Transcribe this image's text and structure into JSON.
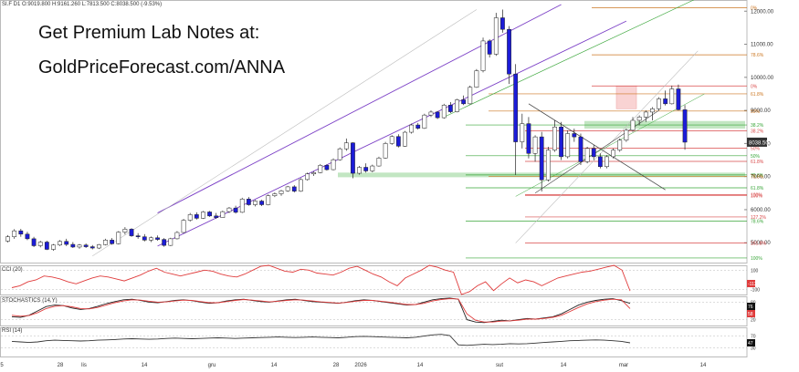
{
  "header": {
    "symbol_line": "SI.F  D1  O:9019.800  H:9161.260  L:7813.500  C:8038.500  (-9.53%)",
    "promo_line1": "Get Premium Lab Notes at:",
    "promo_line2": "GoldPriceForecast.com/ANNA"
  },
  "colors": {
    "bull": "#ffffff",
    "bear": "#1c1cd8",
    "channel": "#7b3fc6",
    "fib_red": "#d94a4a",
    "fib_green": "#39a639",
    "fib_orange": "#cc7722",
    "support_zone": "#8fd18f",
    "resist_zone": "#f2a0a0",
    "cci_line": "#e03c3c",
    "stoch_k": "#222222",
    "stoch_d": "#e03c3c",
    "rsi_line": "#333333"
  },
  "chart_data": [
    {
      "type": "candlestick",
      "panel": "price",
      "title": "",
      "ylim": [
        4400,
        12200
      ],
      "y_ticks": [
        5000,
        6000,
        7000,
        8000,
        9000,
        10000,
        11000,
        12000
      ],
      "y_tick_labels": [
        "5000.00",
        "6000.00",
        "7000.00",
        "8000.00",
        "9000.00",
        "10000.00",
        "11000.00",
        "12000.00"
      ],
      "x_tick_labels": [
        "5",
        "28",
        "lis",
        "14",
        "gru",
        "14",
        "28",
        "2026",
        "14",
        "sut",
        "14",
        "mar",
        "14"
      ],
      "last_price_label": "8038.50",
      "ohlc": [
        [
          5050,
          5230,
          5010,
          5180
        ],
        [
          5180,
          5410,
          5120,
          5360
        ],
        [
          5360,
          5420,
          5180,
          5260
        ],
        [
          5260,
          5330,
          5080,
          5120
        ],
        [
          5120,
          5180,
          4870,
          4910
        ],
        [
          4910,
          5060,
          4860,
          5020
        ],
        [
          5020,
          5060,
          4780,
          4800
        ],
        [
          4800,
          4960,
          4760,
          4930
        ],
        [
          4930,
          5080,
          4900,
          5040
        ],
        [
          5040,
          5120,
          4900,
          4950
        ],
        [
          4950,
          5020,
          4840,
          4870
        ],
        [
          4870,
          4960,
          4820,
          4930
        ],
        [
          4930,
          4980,
          4840,
          4880
        ],
        [
          4880,
          4930,
          4800,
          4840
        ],
        [
          4840,
          4960,
          4810,
          4940
        ],
        [
          4940,
          5120,
          4920,
          5080
        ],
        [
          5080,
          5140,
          4940,
          4970
        ],
        [
          4970,
          5350,
          4950,
          5320
        ],
        [
          5320,
          5470,
          5250,
          5410
        ],
        [
          5410,
          5440,
          5180,
          5210
        ],
        [
          5210,
          5290,
          5120,
          5180
        ],
        [
          5180,
          5260,
          5040,
          5080
        ],
        [
          5080,
          5190,
          5020,
          5150
        ],
        [
          5150,
          5220,
          5060,
          5100
        ],
        [
          5100,
          5140,
          4880,
          4920
        ],
        [
          4920,
          5150,
          4900,
          5120
        ],
        [
          5120,
          5350,
          5100,
          5310
        ],
        [
          5310,
          5720,
          5290,
          5680
        ],
        [
          5680,
          5900,
          5640,
          5850
        ],
        [
          5850,
          5920,
          5700,
          5740
        ],
        [
          5740,
          5960,
          5720,
          5930
        ],
        [
          5930,
          5960,
          5780,
          5810
        ],
        [
          5810,
          5900,
          5720,
          5760
        ],
        [
          5760,
          5970,
          5750,
          5940
        ],
        [
          5940,
          6080,
          5900,
          6050
        ],
        [
          6050,
          6120,
          5880,
          5920
        ],
        [
          5920,
          6360,
          5900,
          6320
        ],
        [
          6320,
          6380,
          6120,
          6150
        ],
        [
          6150,
          6290,
          6100,
          6260
        ],
        [
          6260,
          6300,
          6110,
          6150
        ],
        [
          6150,
          6460,
          6130,
          6420
        ],
        [
          6420,
          6520,
          6380,
          6480
        ],
        [
          6480,
          6600,
          6420,
          6570
        ],
        [
          6570,
          6720,
          6540,
          6690
        ],
        [
          6690,
          6740,
          6520,
          6560
        ],
        [
          6560,
          6950,
          6540,
          6910
        ],
        [
          6910,
          7120,
          6880,
          7080
        ],
        [
          7080,
          7160,
          7020,
          7120
        ],
        [
          7120,
          7380,
          7100,
          7340
        ],
        [
          7340,
          7370,
          7180,
          7210
        ],
        [
          7210,
          7550,
          7190,
          7510
        ],
        [
          7510,
          7880,
          7480,
          7840
        ],
        [
          7840,
          8150,
          7780,
          8020
        ],
        [
          8020,
          8040,
          6950,
          7100
        ],
        [
          7100,
          7320,
          7060,
          7280
        ],
        [
          7280,
          7400,
          7120,
          7170
        ],
        [
          7170,
          7360,
          7130,
          7320
        ],
        [
          7320,
          7600,
          7300,
          7560
        ],
        [
          7560,
          8050,
          7540,
          8000
        ],
        [
          8000,
          8250,
          7960,
          8210
        ],
        [
          8210,
          8280,
          7880,
          7920
        ],
        [
          7920,
          8380,
          7900,
          8340
        ],
        [
          8340,
          8600,
          8300,
          8560
        ],
        [
          8560,
          8620,
          8420,
          8460
        ],
        [
          8460,
          8900,
          8440,
          8860
        ],
        [
          8860,
          9000,
          8800,
          8950
        ],
        [
          8950,
          8980,
          8740,
          8780
        ],
        [
          8780,
          9200,
          8750,
          9160
        ],
        [
          9160,
          9250,
          8920,
          8960
        ],
        [
          8960,
          9350,
          8940,
          9320
        ],
        [
          9320,
          9450,
          9160,
          9200
        ],
        [
          9200,
          9750,
          9180,
          9700
        ],
        [
          9700,
          10250,
          9680,
          10200
        ],
        [
          10200,
          11200,
          10150,
          11100
        ],
        [
          11100,
          11150,
          10600,
          10700
        ],
        [
          10700,
          11950,
          10650,
          11800
        ],
        [
          11800,
          12050,
          11350,
          11450
        ],
        [
          11450,
          11550,
          9800,
          10100
        ],
        [
          10100,
          10400,
          7050,
          8050
        ],
        [
          8050,
          8900,
          7850,
          8600
        ],
        [
          8600,
          8800,
          7550,
          7700
        ],
        [
          7700,
          8250,
          7450,
          8200
        ],
        [
          8200,
          8350,
          6550,
          6900
        ],
        [
          6900,
          7900,
          6850,
          7800
        ],
        [
          7800,
          8700,
          7750,
          8500
        ],
        [
          8500,
          8650,
          7500,
          7600
        ],
        [
          7600,
          8400,
          7550,
          8300
        ],
        [
          8300,
          8450,
          8050,
          8200
        ],
        [
          8200,
          8300,
          7350,
          7450
        ],
        [
          7450,
          7900,
          7400,
          7850
        ],
        [
          7850,
          7950,
          7500,
          7600
        ],
        [
          7600,
          7700,
          7250,
          7300
        ],
        [
          7300,
          7650,
          7250,
          7600
        ],
        [
          7600,
          7850,
          7550,
          7800
        ],
        [
          7800,
          8150,
          7750,
          8100
        ],
        [
          8100,
          8450,
          8050,
          8400
        ],
        [
          8400,
          8800,
          8350,
          8700
        ],
        [
          8700,
          8850,
          8550,
          8800
        ],
        [
          8800,
          9000,
          8650,
          8950
        ],
        [
          8950,
          9100,
          8700,
          9050
        ],
        [
          9050,
          9400,
          9000,
          9350
        ],
        [
          9350,
          9600,
          9150,
          9200
        ],
        [
          9200,
          9750,
          9180,
          9650
        ],
        [
          9650,
          9780,
          9000,
          9020
        ],
        [
          9020,
          9160,
          7810,
          8040
        ]
      ],
      "fib_levels": [
        {
          "label": "0%",
          "value": 12100,
          "color": "orange"
        },
        {
          "label": "78.6%",
          "value": 10680,
          "color": "orange"
        },
        {
          "label": "0%",
          "value": 9740,
          "color": "red"
        },
        {
          "label": "61.8%",
          "value": 9500,
          "color": "orange"
        },
        {
          "label": "50%",
          "value": 8980,
          "color": "orange"
        },
        {
          "label": "38.2%",
          "value": 8560,
          "color": "green"
        },
        {
          "label": "38.2%",
          "value": 8380,
          "color": "red"
        },
        {
          "label": "50%",
          "value": 7860,
          "color": "red"
        },
        {
          "label": "50%",
          "value": 7630,
          "color": "green"
        },
        {
          "label": "61.8%",
          "value": 7460,
          "color": "red"
        },
        {
          "label": "78.6%",
          "value": 7050,
          "color": "green"
        },
        {
          "label": "78.6%",
          "value": 7000,
          "color": "orange"
        },
        {
          "label": "61.8%",
          "value": 6660,
          "color": "green"
        },
        {
          "label": "100%",
          "value": 6450,
          "color": "red"
        },
        {
          "label": "100%",
          "value": 6420,
          "color": "red"
        },
        {
          "label": "127.2%",
          "value": 5780,
          "color": "red"
        },
        {
          "label": "78.6%",
          "value": 5650,
          "color": "green"
        },
        {
          "label": "161.8%",
          "value": 4990,
          "color": "red"
        },
        {
          "label": "100%",
          "value": 4540,
          "color": "green"
        }
      ],
      "support_zones": [
        [
          8450,
          8680
        ],
        [
          6980,
          7120
        ]
      ],
      "resistance_zone": [
        9050,
        9740
      ]
    },
    {
      "type": "line",
      "panel": "oscillator",
      "title": "CCI (20)",
      "ylim": [
        -150,
        150
      ],
      "y_tick_labels": [
        "100",
        "-100"
      ],
      "current_value_label": "-113",
      "series": [
        {
          "values": [
            -80,
            -60,
            -20,
            0,
            40,
            30,
            10,
            -20,
            -40,
            -10,
            20,
            40,
            30,
            10,
            -10,
            20,
            50,
            90,
            120,
            80,
            60,
            40,
            60,
            80,
            100,
            90,
            60,
            40,
            30,
            60,
            100,
            140,
            170,
            120,
            90,
            80,
            110,
            100,
            70,
            60,
            50,
            80,
            120,
            140,
            100,
            60,
            30,
            -20,
            -60,
            20,
            60,
            100,
            150,
            130,
            100,
            80,
            -150,
            -120,
            -60,
            -20,
            -110,
            -40,
            20,
            -30,
            0,
            -20,
            -60,
            -20,
            20,
            40,
            60,
            80,
            90,
            110,
            130,
            150,
            100,
            -113
          ]
        }
      ]
    },
    {
      "type": "line",
      "panel": "oscillator",
      "title": "STOCHASTICS (14,Y)",
      "ylim": [
        0,
        100
      ],
      "y_tick_labels": [
        "80",
        "20"
      ],
      "current_value_labels": [
        "76",
        "58"
      ],
      "series": [
        {
          "values": [
            30,
            28,
            35,
            50,
            65,
            70,
            68,
            60,
            55,
            58,
            66,
            75,
            82,
            88,
            90,
            86,
            80,
            78,
            82,
            86,
            88,
            85,
            80,
            76,
            78,
            84,
            88,
            90,
            86,
            82,
            80,
            84,
            88,
            90,
            86,
            82,
            80,
            78,
            76,
            80,
            85,
            88,
            86,
            82,
            78,
            74,
            70,
            72,
            80,
            88,
            92,
            94,
            90,
            20,
            12,
            10,
            14,
            18,
            16,
            20,
            24,
            22,
            26,
            30,
            40,
            55,
            70,
            80,
            86,
            90,
            92,
            85,
            76
          ]
        },
        {
          "values": [
            35,
            32,
            34,
            44,
            58,
            66,
            68,
            64,
            58,
            57,
            62,
            70,
            78,
            84,
            88,
            87,
            83,
            80,
            81,
            84,
            87,
            86,
            82,
            78,
            78,
            82,
            86,
            89,
            87,
            84,
            81,
            83,
            86,
            88,
            87,
            84,
            81,
            79,
            77,
            79,
            83,
            86,
            86,
            83,
            80,
            76,
            72,
            72,
            76,
            84,
            89,
            92,
            91,
            40,
            18,
            12,
            12,
            15,
            16,
            18,
            22,
            22,
            24,
            28,
            35,
            48,
            62,
            74,
            82,
            87,
            90,
            88,
            58
          ]
        }
      ]
    },
    {
      "type": "line",
      "panel": "oscillator",
      "title": "RSI (14)",
      "ylim": [
        0,
        100
      ],
      "y_tick_labels": [
        "70",
        "30"
      ],
      "current_value_label": "47",
      "series": [
        {
          "values": [
            52,
            50,
            48,
            50,
            54,
            56,
            55,
            54,
            53,
            54,
            56,
            57,
            58,
            60,
            61,
            60,
            59,
            60,
            62,
            63,
            62,
            61,
            62,
            63,
            64,
            63,
            62,
            63,
            64,
            65,
            66,
            67,
            66,
            65,
            66,
            67,
            66,
            65,
            64,
            66,
            68,
            69,
            68,
            67,
            66,
            65,
            64,
            66,
            70,
            74,
            76,
            72,
            40,
            38,
            40,
            42,
            41,
            42,
            44,
            43,
            44,
            46,
            48,
            50,
            52,
            54,
            55,
            56,
            57,
            56,
            54,
            52,
            47
          ]
        }
      ]
    }
  ]
}
